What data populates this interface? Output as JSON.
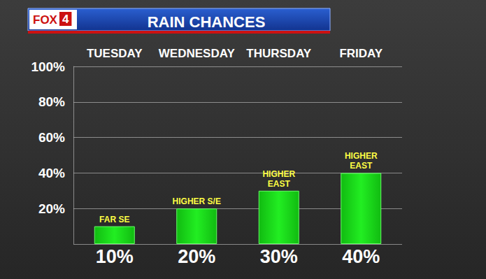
{
  "chart_data": {
    "type": "bar",
    "title": "RAIN CHANCES",
    "logo": "FOX 4",
    "categories": [
      "TUESDAY",
      "WEDNESDAY",
      "THURSDAY",
      "FRIDAY"
    ],
    "values": [
      10,
      20,
      30,
      40
    ],
    "value_labels": [
      "10%",
      "20%",
      "30%",
      "40%"
    ],
    "annotations": [
      "FAR SE",
      "HIGHER S/E",
      "HIGHER\nEAST",
      "HIGHER\nEAST"
    ],
    "color": "#22ee22",
    "ylim": [
      0,
      100
    ],
    "yticks": [
      {
        "value": 20,
        "label": "20%"
      },
      {
        "value": 40,
        "label": "40%"
      },
      {
        "value": 60,
        "label": "60%"
      },
      {
        "value": 80,
        "label": "80%"
      },
      {
        "value": 100,
        "label": "100%"
      }
    ],
    "grid": true,
    "data_labels": true
  }
}
